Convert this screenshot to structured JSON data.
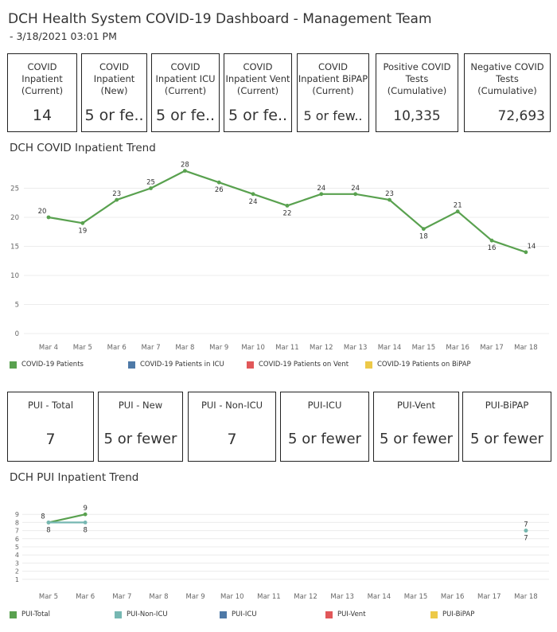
{
  "header": {
    "title": "DCH Health System COVID-19 Dashboard - Management Team",
    "subtitle": " - 3/18/2021 03:01 PM"
  },
  "top_kpis": [
    {
      "label": "COVID\nInpatient\n(Current)",
      "value": "14"
    },
    {
      "label": "COVID\nInpatient\n(New)",
      "value": "5 or fe.."
    },
    {
      "label": "COVID\nInpatient ICU\n(Current)",
      "value": "5 or fe.."
    },
    {
      "label": "COVID\nInpatient Vent\n(Current)",
      "value": "5 or fe.."
    },
    {
      "label": "COVID\nInpatient BiPAP\n(Current)",
      "value": "5 or few.."
    },
    {
      "label": "Positive COVID\nTests\n(Cumulative)",
      "value": "10,335"
    },
    {
      "label": "Negative COVID\nTests\n(Cumulative)",
      "value": "72,693"
    }
  ],
  "inpatient_trend": {
    "title": "DCH COVID Inpatient Trend",
    "legend": [
      {
        "label": "COVID-19 Patients",
        "color": "#59a14f"
      },
      {
        "label": "COVID-19 Patients in ICU",
        "color": "#4e79a7"
      },
      {
        "label": "COVID-19 Patients on Vent",
        "color": "#e15759"
      },
      {
        "label": "COVID-19 Patients on BiPAP",
        "color": "#edc948"
      }
    ]
  },
  "pui_kpis": [
    {
      "label": "PUI - Total",
      "value": "7"
    },
    {
      "label": "PUI - New",
      "value": "5 or fewer"
    },
    {
      "label": "PUI - Non-ICU",
      "value": "7"
    },
    {
      "label": "PUI-ICU",
      "value": "5 or fewer"
    },
    {
      "label": "PUI-Vent",
      "value": "5 or fewer"
    },
    {
      "label": "PUI-BiPAP",
      "value": "5 or fewer"
    }
  ],
  "pui_trend": {
    "title": "DCH PUI Inpatient Trend",
    "legend": [
      {
        "label": "PUI-Total",
        "color": "#59a14f"
      },
      {
        "label": "PUI-Non-ICU",
        "color": "#76b7b2"
      },
      {
        "label": "PUI-ICU",
        "color": "#4e79a7"
      },
      {
        "label": "PUI-Vent",
        "color": "#e15759"
      },
      {
        "label": "PUI-BiPAP",
        "color": "#edc948"
      }
    ]
  },
  "chart_data": [
    {
      "type": "line",
      "title": "DCH COVID Inpatient Trend",
      "categories": [
        "Mar 4",
        "Mar 5",
        "Mar 6",
        "Mar 7",
        "Mar 8",
        "Mar 9",
        "Mar 10",
        "Mar 11",
        "Mar 12",
        "Mar 13",
        "Mar 14",
        "Mar 15",
        "Mar 16",
        "Mar 17",
        "Mar 18"
      ],
      "yticks": [
        0,
        5,
        10,
        15,
        20,
        25
      ],
      "ylim": [
        0,
        30
      ],
      "grid": true,
      "legend_position": "bottom",
      "series": [
        {
          "name": "COVID-19 Patients",
          "color": "#59a14f",
          "values": [
            20,
            19,
            23,
            25,
            28,
            26,
            24,
            22,
            24,
            24,
            23,
            18,
            21,
            16,
            14
          ]
        }
      ]
    },
    {
      "type": "line",
      "title": "DCH PUI Inpatient Trend",
      "categories": [
        "Mar 5",
        "Mar 6",
        "Mar 7",
        "Mar 8",
        "Mar 9",
        "Mar 10",
        "Mar 11",
        "Mar 12",
        "Mar 13",
        "Mar 14",
        "Mar 15",
        "Mar 16",
        "Mar 17",
        "Mar 18"
      ],
      "yticks": [
        1,
        2,
        3,
        4,
        5,
        6,
        7,
        8,
        9
      ],
      "ylim": [
        0,
        9.5
      ],
      "grid": true,
      "legend_position": "bottom",
      "series": [
        {
          "name": "PUI-Total",
          "color": "#59a14f",
          "values": [
            8,
            9,
            null,
            null,
            null,
            null,
            null,
            null,
            null,
            null,
            null,
            null,
            null,
            7
          ]
        },
        {
          "name": "PUI-Non-ICU",
          "color": "#76b7b2",
          "values": [
            8,
            8,
            null,
            null,
            null,
            null,
            null,
            null,
            null,
            null,
            null,
            null,
            null,
            7
          ]
        }
      ]
    }
  ]
}
